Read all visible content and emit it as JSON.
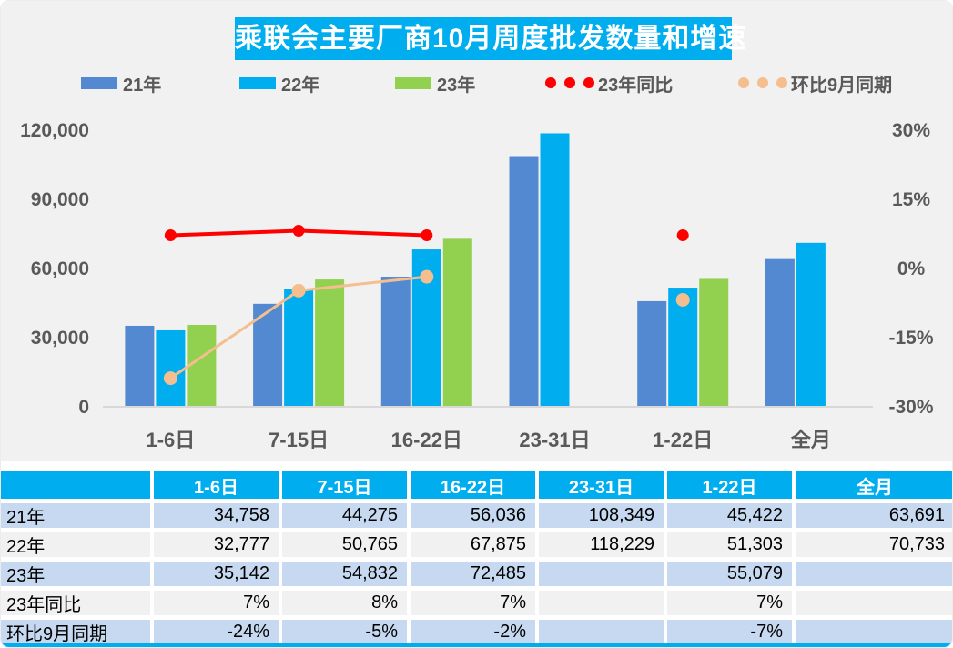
{
  "title": "乘联会主要厂商10月周度批发数量和增速",
  "colors": {
    "accent_cyan": "#00AEEF",
    "bar_blue": "#5389D1",
    "bar_cyan": "#00AEEF",
    "bar_green": "#92D050",
    "line_red": "#FF0000",
    "line_peach": "#F5BE8E",
    "row_light_blue": "#C6D9F1",
    "row_light_gray": "#F1F1F1",
    "chart_background": "#F1F1F1",
    "axis_text": "#595959",
    "baseline": "#D8D8D8"
  },
  "legend": [
    {
      "label": "21年",
      "type": "bar",
      "color": "#5389D1"
    },
    {
      "label": "22年",
      "type": "bar",
      "color": "#00AEEF"
    },
    {
      "label": "23年",
      "type": "bar",
      "color": "#92D050"
    },
    {
      "label": "23年同比",
      "type": "line",
      "color": "#FF0000"
    },
    {
      "label": "环比9月同期",
      "type": "line",
      "color": "#F5BE8E"
    }
  ],
  "chart_data": {
    "type": "combo-bar-line",
    "title": "乘联会主要厂商10月周度批发数量和增速",
    "categories": [
      "1-6日",
      "7-15日",
      "16-22日",
      "23-31日",
      "1-22日",
      "全月"
    ],
    "bar_series": [
      {
        "name": "21年",
        "color": "#5389D1",
        "values": [
          34758,
          44275,
          56036,
          108349,
          45422,
          63691
        ]
      },
      {
        "name": "22年",
        "color": "#00AEEF",
        "values": [
          32777,
          50765,
          67875,
          118229,
          51303,
          70733
        ]
      },
      {
        "name": "23年",
        "color": "#92D050",
        "values": [
          35142,
          54832,
          72485,
          null,
          55079,
          null
        ]
      }
    ],
    "line_series": [
      {
        "name": "23年同比",
        "color": "#FF0000",
        "values_pct": [
          7,
          8,
          7,
          null,
          7,
          null
        ]
      },
      {
        "name": "环比9月同期",
        "color": "#F5BE8E",
        "values_pct": [
          -24,
          -5,
          -2,
          null,
          -7,
          null
        ]
      }
    ],
    "left_axis": {
      "min": 0,
      "max": 120000,
      "tick_labels": [
        "0",
        "30,000",
        "60,000",
        "90,000",
        "120,000"
      ]
    },
    "right_axis": {
      "range": [
        -30,
        30
      ],
      "tick_labels": [
        "-30%",
        "-15%",
        "0%",
        "15%",
        "30%"
      ]
    },
    "grid": "off",
    "legend_position": "top"
  },
  "table": {
    "header": [
      "",
      "1-6日",
      "7-15日",
      "16-22日",
      "23-31日",
      "1-22日",
      "全月"
    ],
    "rows": [
      {
        "label": "21年",
        "cells": [
          "34,758",
          "44,275",
          "56,036",
          "108,349",
          "45,422",
          "63,691"
        ]
      },
      {
        "label": "22年",
        "cells": [
          "32,777",
          "50,765",
          "67,875",
          "118,229",
          "51,303",
          "70,733"
        ]
      },
      {
        "label": "23年",
        "cells": [
          "35,142",
          "54,832",
          "72,485",
          "",
          "55,079",
          ""
        ]
      },
      {
        "label": "23年同比",
        "cells": [
          "7%",
          "8%",
          "7%",
          "",
          "7%",
          ""
        ]
      },
      {
        "label": "环比9月同期",
        "cells": [
          "-24%",
          "-5%",
          "-2%",
          "",
          "-7%",
          ""
        ]
      }
    ]
  }
}
